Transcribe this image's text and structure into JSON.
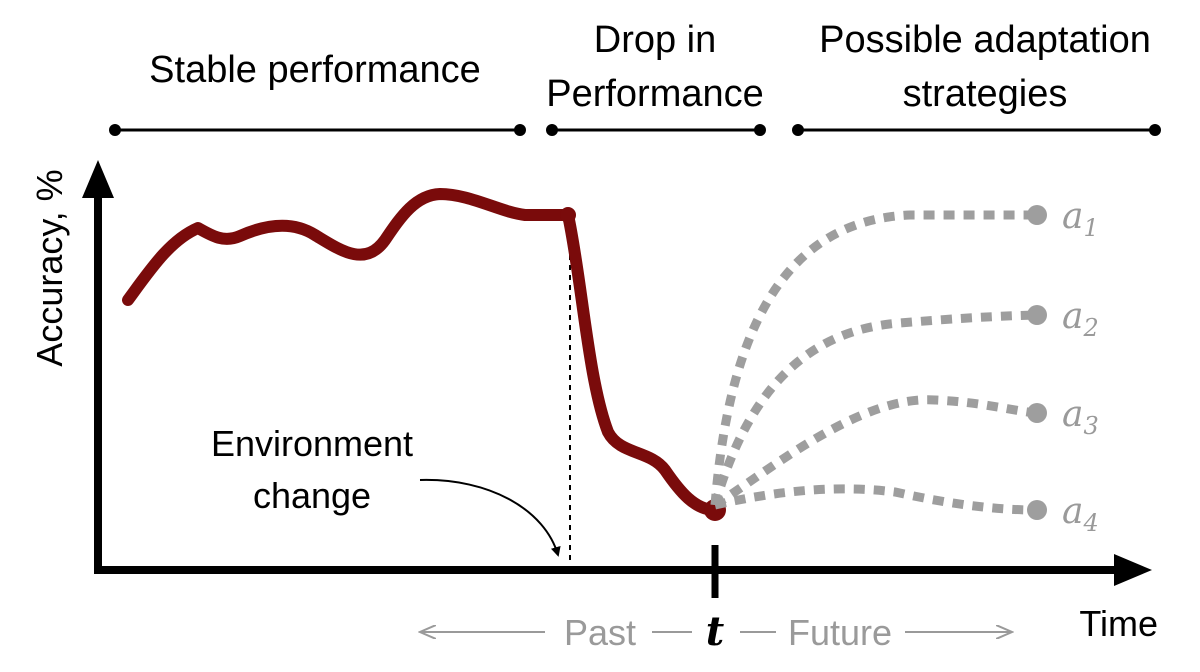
{
  "phases": {
    "stable": "Stable performance",
    "drop_line1": "Drop in",
    "drop_line2": "Performance",
    "adapt_line1": "Possible adaptation",
    "adapt_line2": "strategies"
  },
  "axes": {
    "y_label": "Accuracy, %",
    "x_label": "Time"
  },
  "annotation": {
    "line1": "Environment",
    "line2": "change"
  },
  "timeline": {
    "past": "Past",
    "t": "t",
    "future": "Future"
  },
  "strategies": [
    {
      "base": "a",
      "sub": "1"
    },
    {
      "base": "a",
      "sub": "2"
    },
    {
      "base": "a",
      "sub": "3"
    },
    {
      "base": "a",
      "sub": "4"
    }
  ],
  "colors": {
    "accuracy_curve": "#7a0b0b",
    "strategy_curves": "#9e9e9e",
    "axes": "#000000"
  }
}
